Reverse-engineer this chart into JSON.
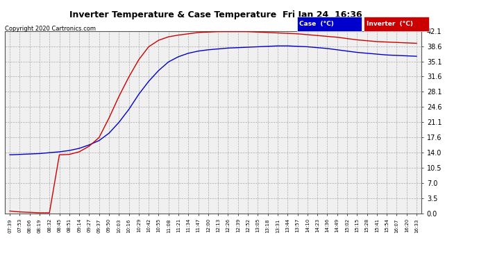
{
  "title": "Inverter Temperature & Case Temperature  Fri Jan 24  16:36",
  "copyright": "Copyright 2020 Cartronics.com",
  "legend_case_label": "Case  (°C)",
  "legend_inverter_label": "Inverter  (°C)",
  "case_color": "#0000cc",
  "inverter_color": "#cc0000",
  "legend_case_bg": "#0000cc",
  "legend_inverter_bg": "#cc0000",
  "bg_color": "#ffffff",
  "plot_bg_color": "#f0f0f0",
  "grid_color": "#aaaaaa",
  "ylim": [
    0.0,
    42.1
  ],
  "yticks": [
    0.0,
    3.5,
    7.0,
    10.5,
    14.0,
    17.6,
    21.1,
    24.6,
    28.1,
    31.6,
    35.1,
    38.6,
    42.1
  ],
  "x_labels": [
    "07:39",
    "07:53",
    "08:06",
    "08:19",
    "08:32",
    "08:45",
    "08:51",
    "09:14",
    "09:27",
    "09:37",
    "09:50",
    "10:03",
    "10:16",
    "10:29",
    "10:42",
    "10:55",
    "11:08",
    "11:21",
    "11:34",
    "11:47",
    "12:00",
    "12:13",
    "12:26",
    "12:39",
    "12:52",
    "13:05",
    "13:18",
    "13:31",
    "13:44",
    "13:57",
    "14:10",
    "14:23",
    "14:36",
    "14:49",
    "15:02",
    "15:15",
    "15:28",
    "15:41",
    "15:54",
    "16:07",
    "16:20",
    "16:33"
  ],
  "case_color_name": "blue",
  "inverter_color_name": "red",
  "case_values": [
    13.5,
    13.6,
    13.7,
    13.8,
    14.0,
    14.2,
    14.5,
    15.0,
    15.8,
    16.8,
    18.5,
    21.0,
    24.0,
    27.5,
    30.5,
    33.0,
    35.0,
    36.2,
    37.0,
    37.5,
    37.8,
    38.0,
    38.2,
    38.3,
    38.4,
    38.5,
    38.6,
    38.7,
    38.7,
    38.6,
    38.5,
    38.3,
    38.1,
    37.8,
    37.5,
    37.2,
    37.0,
    36.8,
    36.6,
    36.5,
    36.4,
    36.3
  ],
  "inverter_values": [
    0.5,
    0.3,
    0.2,
    0.1,
    0.1,
    13.5,
    13.6,
    14.2,
    15.5,
    17.5,
    22.0,
    27.0,
    31.5,
    35.5,
    38.5,
    40.0,
    40.8,
    41.2,
    41.5,
    41.8,
    41.9,
    42.0,
    42.0,
    42.0,
    42.0,
    41.9,
    41.8,
    41.7,
    41.6,
    41.5,
    41.3,
    41.1,
    40.9,
    40.7,
    40.4,
    40.1,
    39.9,
    39.7,
    39.6,
    39.5,
    39.4,
    39.3
  ]
}
